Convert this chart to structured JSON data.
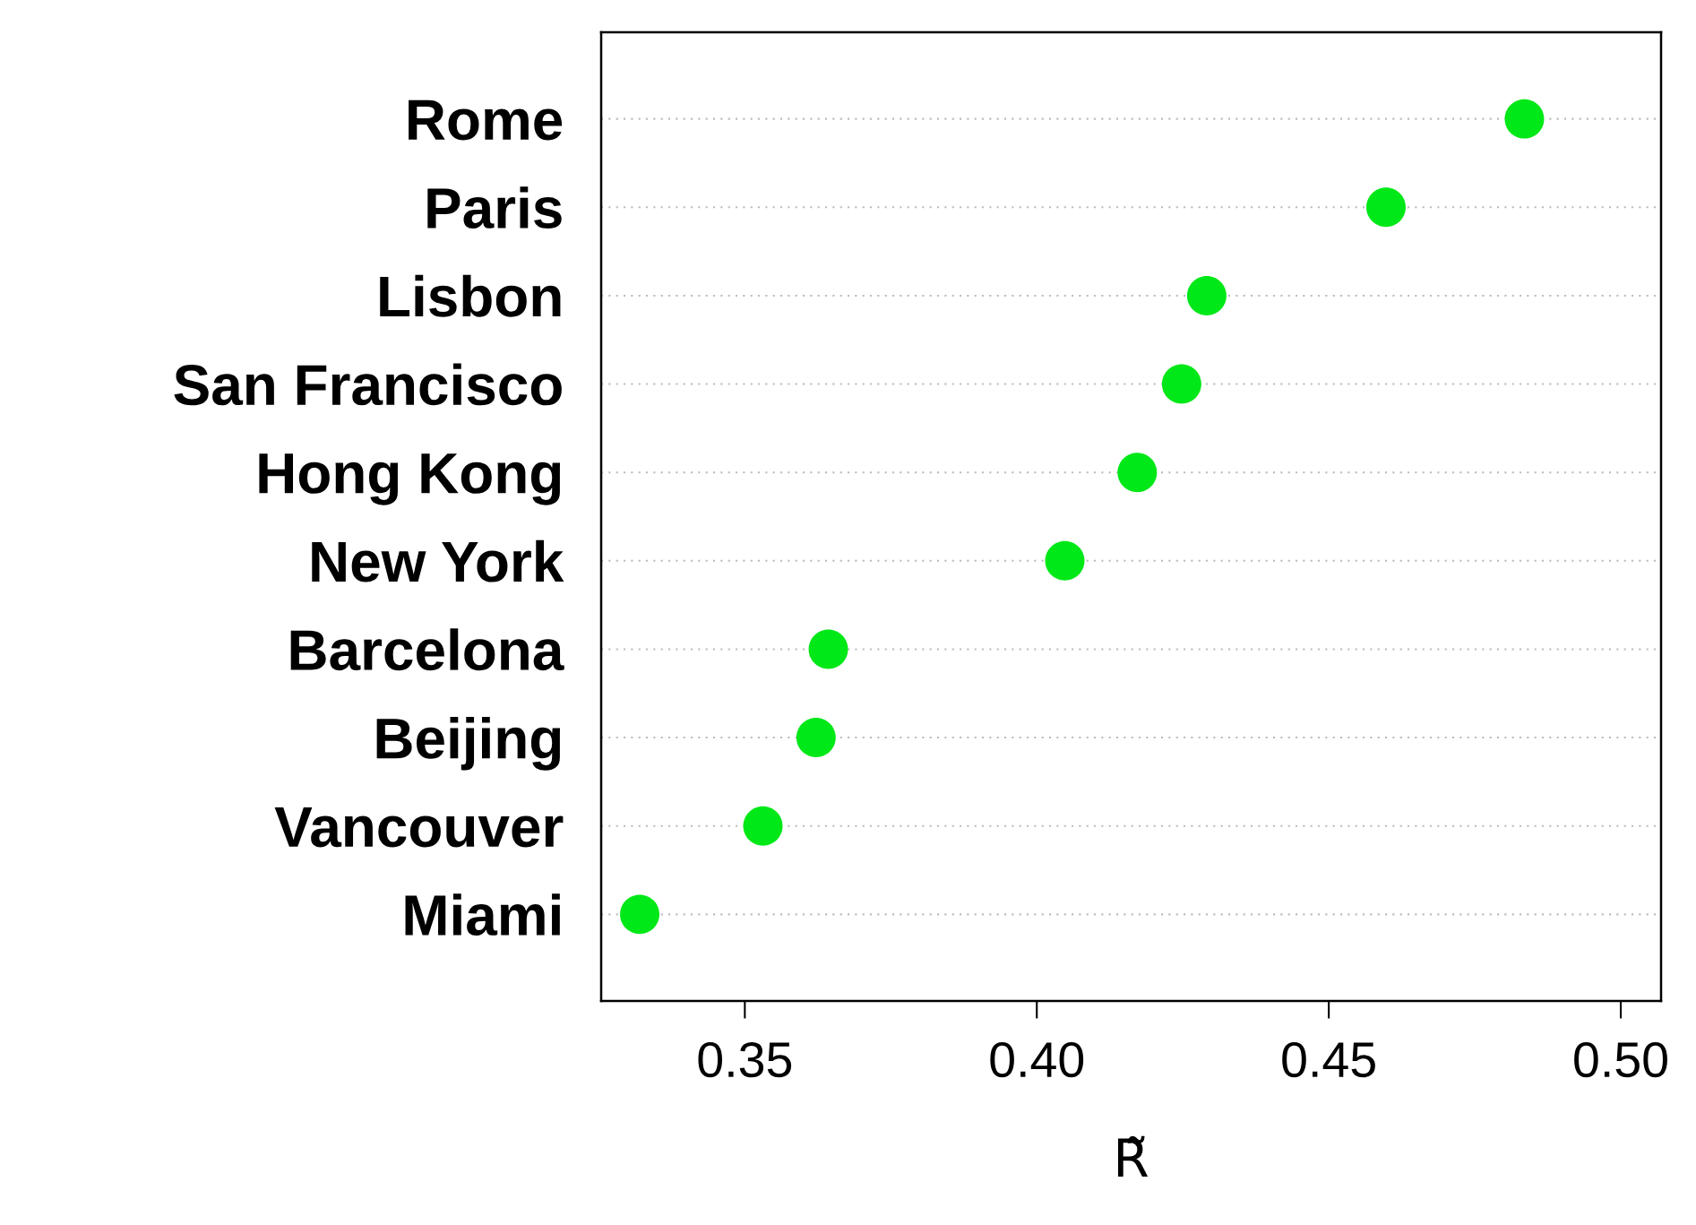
{
  "chart_data": {
    "type": "scatter",
    "orientation": "horizontal",
    "xlabel": "R̃",
    "categories": [
      "Rome",
      "Paris",
      "Lisbon",
      "San Francisco",
      "Hong Kong",
      "New York",
      "Barcelona",
      "Beijing",
      "Vancouver",
      "Miami"
    ],
    "series": [
      {
        "color": "#00e817",
        "values": [
          0.4835,
          0.4598,
          0.4291,
          0.4248,
          0.4172,
          0.4048,
          0.3643,
          0.3622,
          0.3531,
          0.332
        ]
      }
    ],
    "xlim": [
      0.3254,
      0.5069
    ],
    "xticks": [
      {
        "value": 0.35,
        "label": "0.35"
      },
      {
        "value": 0.4,
        "label": "0.40"
      },
      {
        "value": 0.45,
        "label": "0.45"
      },
      {
        "value": 0.5,
        "label": "0.50"
      }
    ],
    "grid": "y",
    "marker": "circle"
  }
}
